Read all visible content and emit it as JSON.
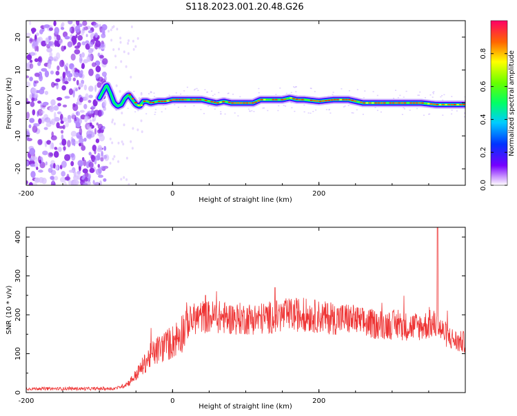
{
  "title": "S118.2023.001.20.48.G26",
  "chart_data": [
    {
      "type": "heatmap",
      "xlabel": "Height of straight line (km)",
      "ylabel": "Frequency (Hz)",
      "xlim": [
        -200,
        400
      ],
      "ylim": [
        -25,
        25
      ],
      "xticks": [
        -200,
        0,
        200
      ],
      "yticks": [
        -20,
        -10,
        0,
        10,
        20
      ],
      "colorbar": {
        "label": "Normalized spectral amplitude",
        "range": [
          0.0,
          1.0
        ],
        "ticks": [
          0.0,
          0.2,
          0.4,
          0.6,
          0.8
        ]
      },
      "ridge_frequency_hz": {
        "x": [
          -100,
          -95,
          -90,
          -85,
          -80,
          -75,
          -70,
          -65,
          -60,
          -55,
          -50,
          -45,
          -40,
          -35,
          -30,
          -20,
          -10,
          0,
          20,
          40,
          50,
          60,
          70,
          80,
          100,
          110,
          120,
          140,
          150,
          160,
          170,
          180,
          200,
          220,
          240,
          250,
          260,
          280,
          300,
          320,
          340,
          360,
          380,
          400
        ],
        "y": [
          1.5,
          3.5,
          5.5,
          3.0,
          0.0,
          -1.0,
          -0.5,
          1.5,
          2.5,
          1.0,
          -0.5,
          -1.0,
          0.5,
          0.5,
          0.0,
          0.5,
          0.5,
          1.0,
          1.0,
          1.0,
          0.5,
          0.0,
          0.5,
          0.0,
          0.0,
          0.0,
          1.0,
          1.0,
          1.0,
          1.5,
          1.0,
          1.0,
          0.5,
          1.0,
          1.0,
          0.5,
          0.0,
          0.0,
          0.0,
          0.0,
          0.0,
          -0.5,
          -0.5,
          -0.5
        ]
      }
    },
    {
      "type": "line",
      "xlabel": "Height of straight line (km)",
      "ylabel": "SNR (10 * v/v)",
      "xlim": [
        -200,
        400
      ],
      "ylim": [
        0,
        425
      ],
      "xticks": [
        -200,
        0,
        200
      ],
      "yticks": [
        0,
        100,
        200,
        300,
        400
      ],
      "color": "#ee3333",
      "series": [
        {
          "x": [
            -200,
            -150,
            -100,
            -80,
            -70,
            -60,
            -50,
            -40,
            -30,
            -20,
            -10,
            0,
            10,
            20,
            30,
            40,
            60,
            80,
            100,
            120,
            140,
            160,
            180,
            200,
            220,
            240,
            260,
            280,
            300,
            320,
            340,
            350,
            360,
            370,
            380,
            390,
            400
          ],
          "values": [
            10,
            10,
            10,
            10,
            15,
            25,
            45,
            70,
            95,
            110,
            120,
            130,
            150,
            175,
            190,
            195,
            195,
            190,
            190,
            190,
            195,
            200,
            200,
            195,
            190,
            190,
            180,
            175,
            175,
            170,
            170,
            175,
            175,
            155,
            140,
            130,
            130
          ]
        }
      ],
      "spikes": [
        {
          "x": 362,
          "value": 425
        },
        {
          "x": 140,
          "value": 270
        },
        {
          "x": 45,
          "value": 250
        }
      ]
    }
  ]
}
